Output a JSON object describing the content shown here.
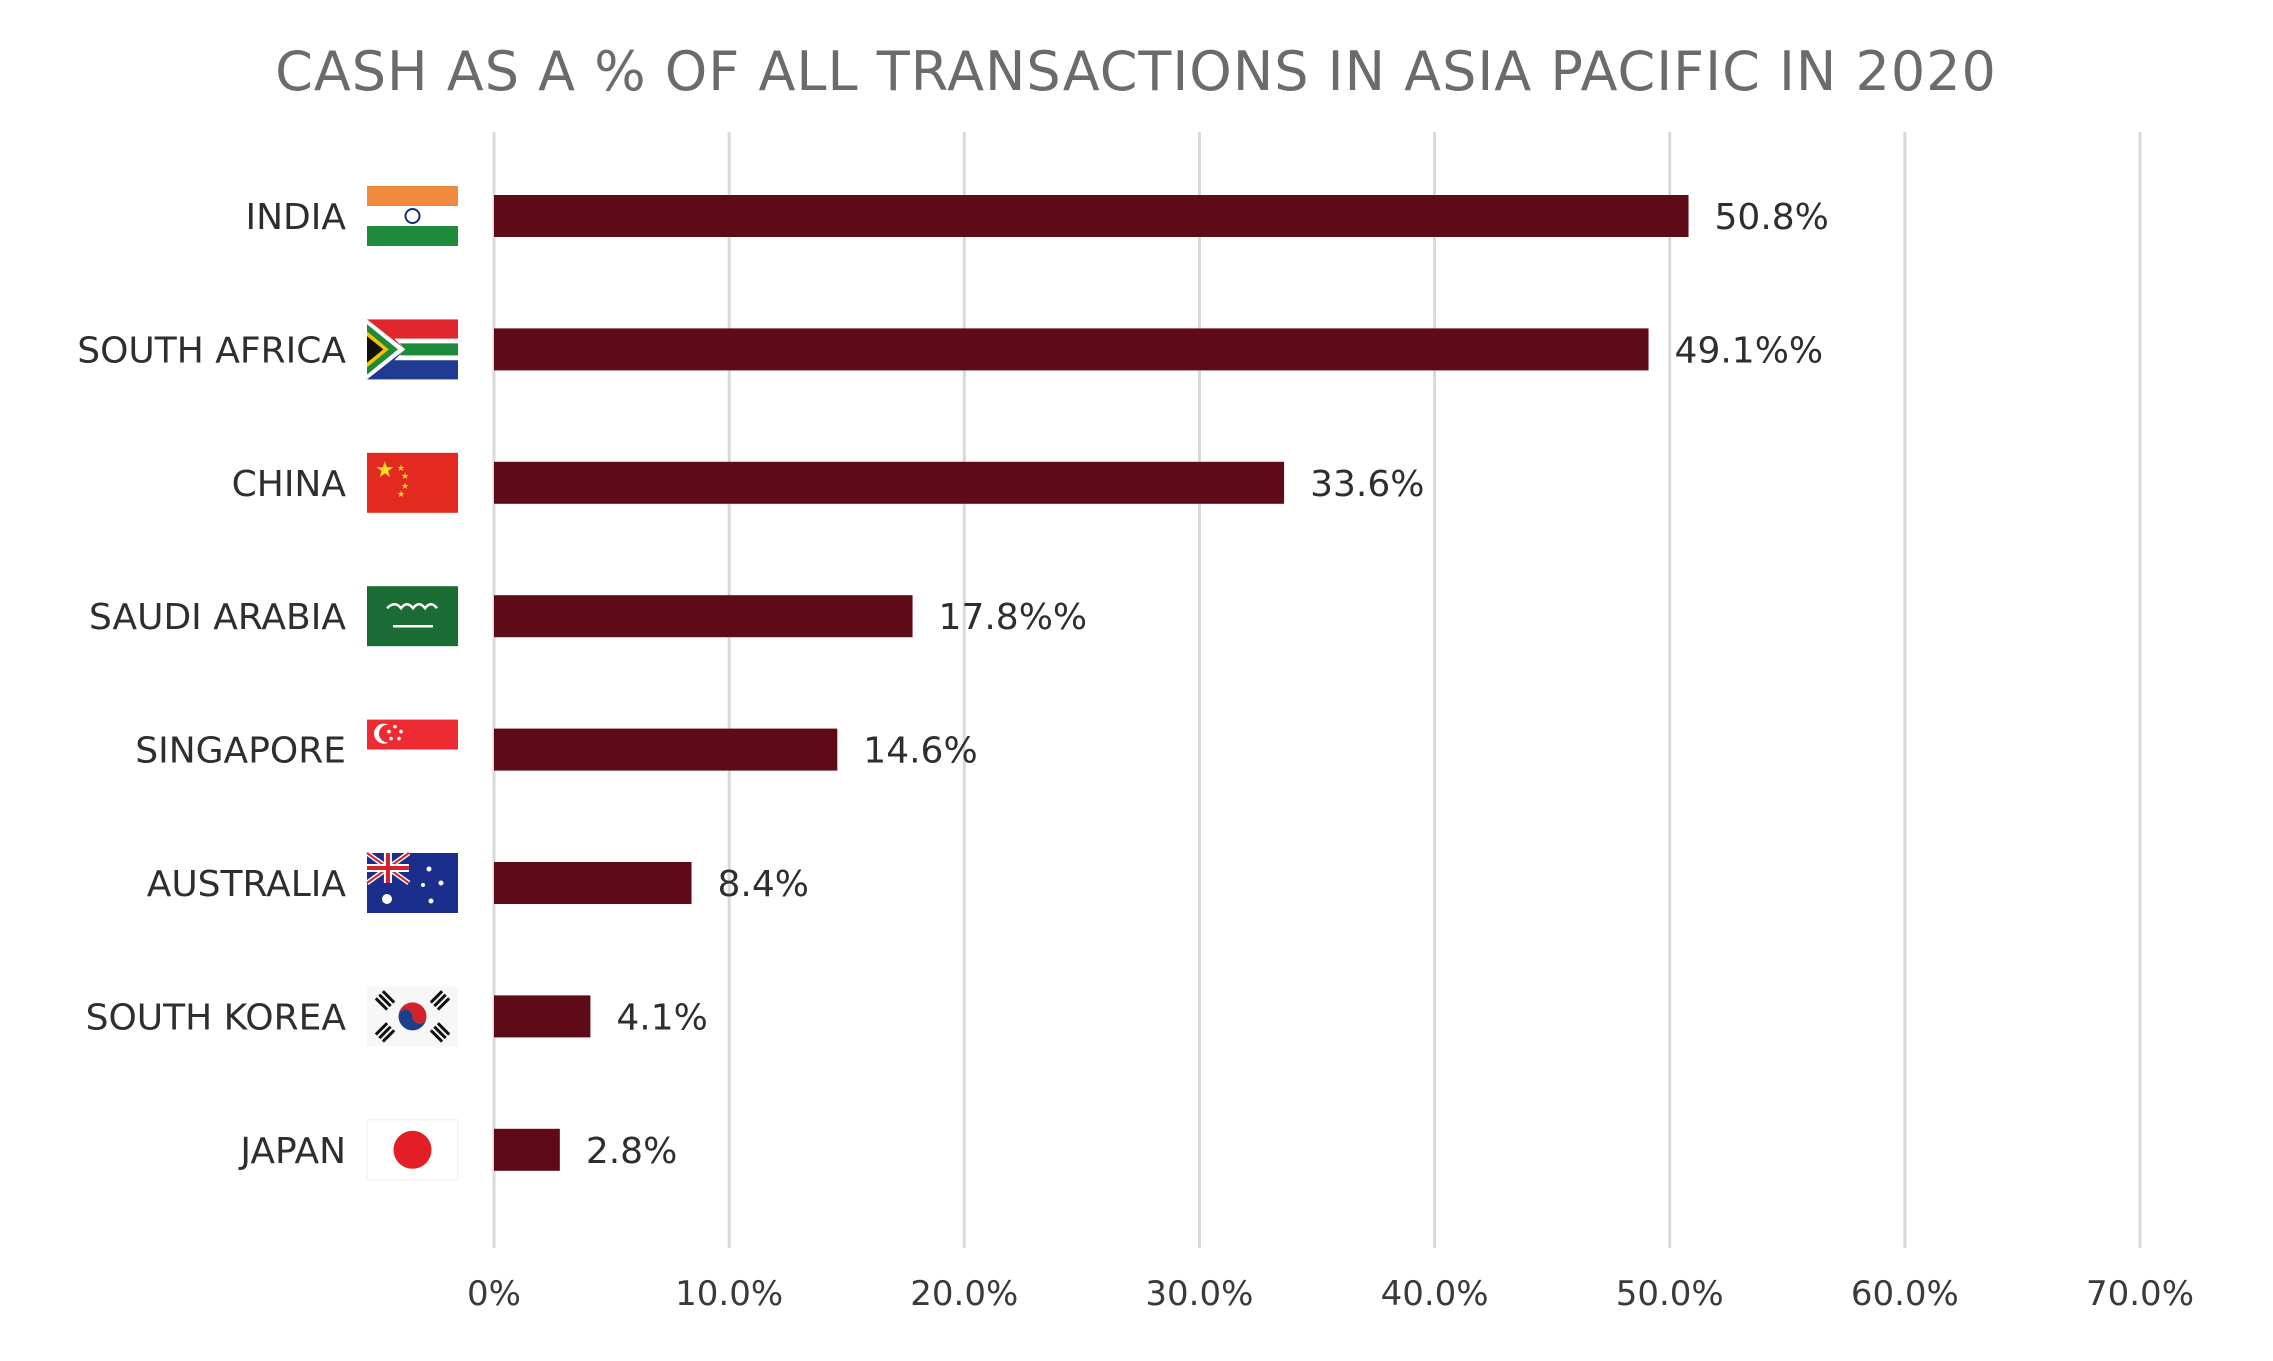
{
  "chart_data": {
    "type": "bar",
    "orientation": "horizontal",
    "title": "CASH AS A % OF ALL TRANSACTIONS IN ASIA PACIFIC IN 2020",
    "categories": [
      "INDIA",
      "SOUTH AFRICA",
      "CHINA",
      "SAUDI ARABIA",
      "SINGAPORE",
      "AUSTRALIA",
      "SOUTH KOREA",
      "JAPAN"
    ],
    "values": [
      50.8,
      49.1,
      33.6,
      17.8,
      14.6,
      8.4,
      4.1,
      2.8
    ],
    "value_labels": [
      "50.8%",
      "49.1%%",
      "33.6%",
      "17.8%%",
      "14.6%",
      "8.4%",
      "4.1%",
      "2.8%"
    ],
    "flag_icons": [
      "india-flag-icon",
      "south-africa-flag-icon",
      "china-flag-icon",
      "saudi-arabia-flag-icon",
      "singapore-flag-icon",
      "australia-flag-icon",
      "south-korea-flag-icon",
      "japan-flag-icon"
    ],
    "x_ticks": [
      0,
      10,
      20,
      30,
      40,
      50,
      60,
      70
    ],
    "x_tick_labels": [
      "0%",
      "10.0%",
      "20.0%",
      "30.0%",
      "40.0%",
      "50.0%",
      "60.0%",
      "70.0%"
    ],
    "xlim": [
      0,
      70
    ],
    "grid": true,
    "bar_color": "#5e0b17",
    "xlabel": "",
    "ylabel": ""
  }
}
